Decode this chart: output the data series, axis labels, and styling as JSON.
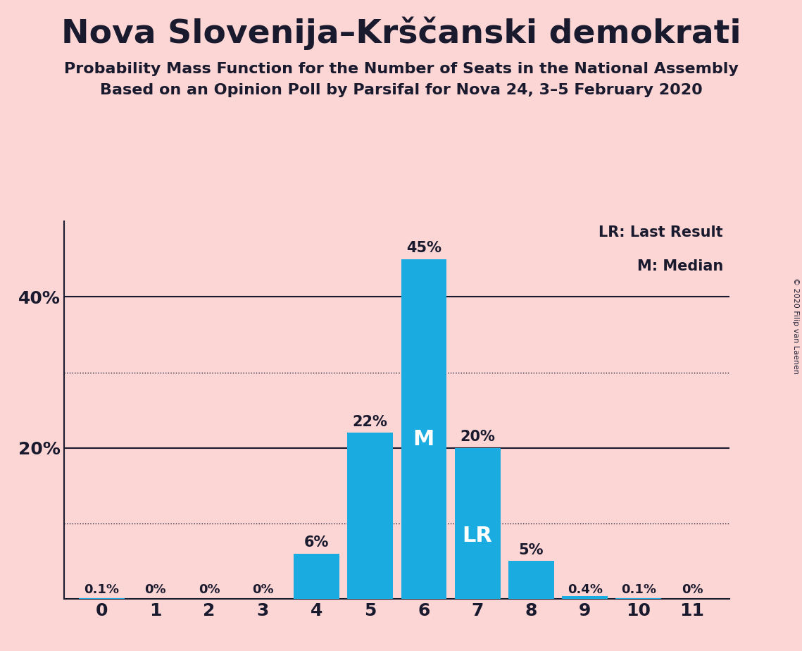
{
  "title": "Nova Slovenija–Krščanski demokrati",
  "subtitle1": "Probability Mass Function for the Number of Seats in the National Assembly",
  "subtitle2": "Based on an Opinion Poll by Parsifal for Nova 24, 3–5 February 2020",
  "copyright": "© 2020 Filip van Laenen",
  "categories": [
    0,
    1,
    2,
    3,
    4,
    5,
    6,
    7,
    8,
    9,
    10,
    11
  ],
  "values": [
    0.001,
    0.0,
    0.0,
    0.0,
    0.06,
    0.22,
    0.45,
    0.2,
    0.05,
    0.004,
    0.001,
    0.0
  ],
  "labels": [
    "0.1%",
    "0%",
    "0%",
    "0%",
    "6%",
    "22%",
    "45%",
    "20%",
    "5%",
    "0.4%",
    "0.1%",
    "0%"
  ],
  "bar_color": "#1aace0",
  "background_color": "#fcd5d5",
  "text_color": "#1a1a2e",
  "median_seat": 6,
  "lr_seat": 7,
  "legend_lr": "LR: Last Result",
  "legend_m": "M: Median",
  "ylim": [
    0,
    0.5
  ],
  "dotted_lines": [
    0.1,
    0.3
  ],
  "solid_lines": [
    0.2,
    0.4
  ]
}
